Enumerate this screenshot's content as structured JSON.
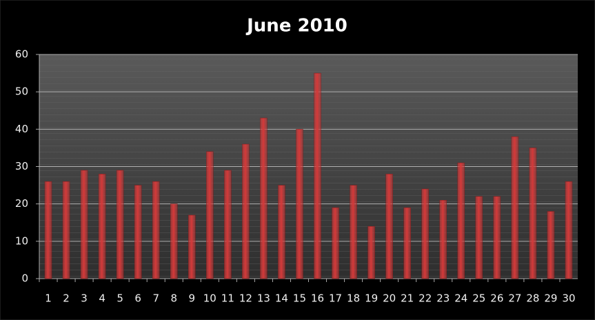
{
  "chart_data": {
    "type": "bar",
    "title": "June  2010",
    "categories": [
      "1",
      "2",
      "3",
      "4",
      "5",
      "6",
      "7",
      "8",
      "9",
      "10",
      "11",
      "12",
      "13",
      "14",
      "15",
      "16",
      "17",
      "18",
      "19",
      "20",
      "21",
      "22",
      "23",
      "24",
      "25",
      "26",
      "27",
      "28",
      "29",
      "30"
    ],
    "values": [
      26,
      26,
      29,
      28,
      29,
      25,
      26,
      20,
      17,
      34,
      29,
      36,
      43,
      25,
      40,
      55,
      19,
      25,
      14,
      28,
      19,
      24,
      21,
      31,
      22,
      22,
      38,
      35,
      18,
      26
    ],
    "color": "#d43a3a",
    "ylim": [
      0,
      60
    ],
    "yticks": [
      0,
      10,
      20,
      30,
      40,
      50,
      60
    ],
    "grid": true
  }
}
